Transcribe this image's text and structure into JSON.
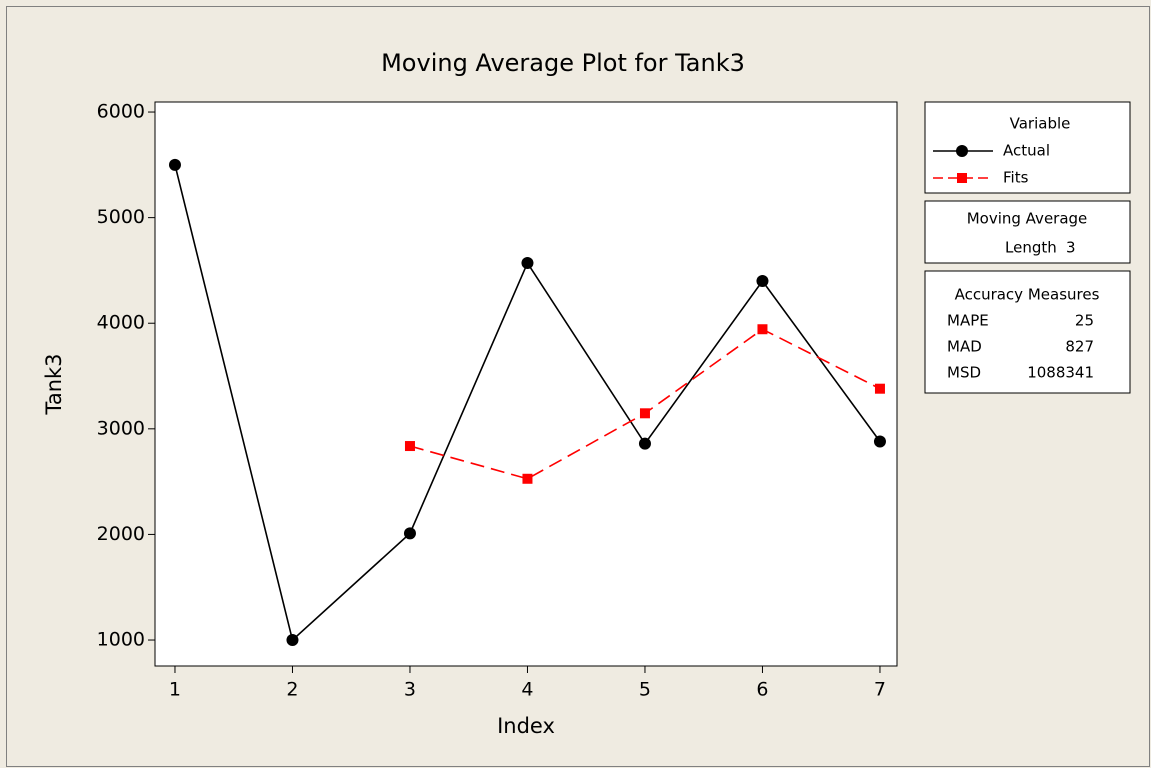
{
  "chart_data": {
    "type": "line",
    "title": "Moving Average Plot for Tank3",
    "x_label": "Index",
    "y_label": "Tank3",
    "x": [
      1,
      2,
      3,
      4,
      5,
      6,
      7
    ],
    "series": [
      {
        "name": "Actual",
        "color": "#000000",
        "marker": "circle",
        "dashed": false,
        "values": [
          5500,
          1000,
          2010,
          4570,
          2860,
          4400,
          2880
        ]
      },
      {
        "name": "Fits",
        "color": "#ff0000",
        "marker": "square",
        "dashed": true,
        "values": [
          null,
          null,
          2837,
          2527,
          3147,
          3943,
          3380
        ]
      }
    ],
    "xlim": [
      0.83,
      7.145
    ],
    "xticks": [
      1,
      2,
      3,
      4,
      5,
      6,
      7
    ],
    "ylim": [
      754,
      6095
    ],
    "yticks": [
      1000,
      2000,
      3000,
      4000,
      5000,
      6000
    ],
    "grid": false,
    "legend_title": "Variable",
    "moving_average": {
      "title": "Moving Average",
      "length_label": "Length",
      "length": 3
    },
    "accuracy_measures": {
      "title": "Accuracy Measures",
      "rows": [
        {
          "name": "MAPE",
          "value": 25
        },
        {
          "name": "MAD",
          "value": 827
        },
        {
          "name": "MSD",
          "value": 1088341
        }
      ]
    }
  }
}
